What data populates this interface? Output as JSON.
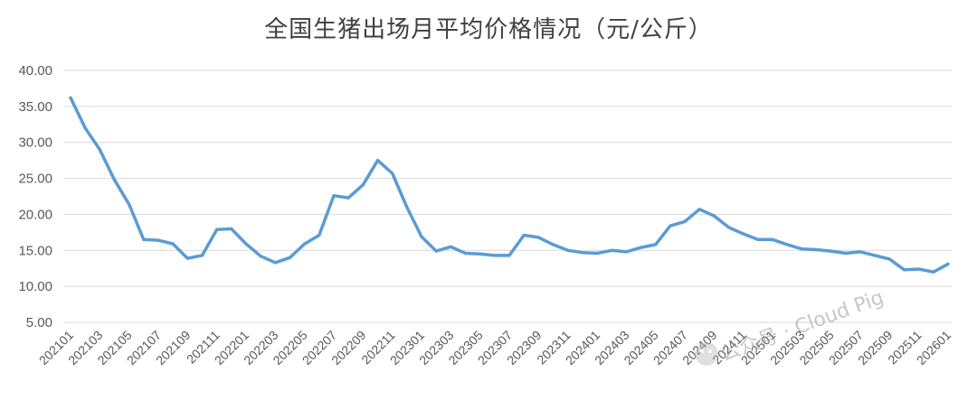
{
  "chart_data": {
    "type": "line",
    "title": "全国生猪出场月平均价格情况（元/公斤）",
    "xlabel": "",
    "ylabel": "",
    "ylim": [
      5,
      40
    ],
    "y_ticks": [
      "5.00",
      "10.00",
      "15.00",
      "20.00",
      "25.00",
      "30.00",
      "35.00",
      "40.00"
    ],
    "grid": true,
    "legend": "none",
    "line_color": "#5b9bd5",
    "x_tick_labels": [
      "202101",
      "202103",
      "202105",
      "202107",
      "202109",
      "202111",
      "202201",
      "202203",
      "202205",
      "202207",
      "202209",
      "202211",
      "202301",
      "202303",
      "202305",
      "202307",
      "202309",
      "202311",
      "202401",
      "202403",
      "202405",
      "202407",
      "202409",
      "202411",
      "202501",
      "202503",
      "202505",
      "202507",
      "202509",
      "202511",
      "202601"
    ],
    "x": [
      "202101",
      "202102",
      "202103",
      "202104",
      "202105",
      "202106",
      "202107",
      "202108",
      "202109",
      "202110",
      "202111",
      "202112",
      "202201",
      "202202",
      "202203",
      "202204",
      "202205",
      "202206",
      "202207",
      "202208",
      "202209",
      "202210",
      "202211",
      "202212",
      "202301",
      "202302",
      "202303",
      "202304",
      "202305",
      "202306",
      "202307",
      "202308",
      "202309",
      "202310",
      "202311",
      "202312",
      "202401",
      "202402",
      "202403",
      "202404",
      "202405",
      "202406",
      "202407",
      "202408",
      "202409",
      "202410",
      "202411",
      "202412",
      "202501",
      "202502",
      "202503",
      "202504",
      "202505",
      "202506",
      "202507",
      "202508",
      "202509",
      "202510",
      "202511",
      "202512",
      "202601"
    ],
    "series": [
      {
        "values": [
          36.2,
          32.0,
          29.0,
          24.8,
          21.4,
          16.5,
          16.4,
          15.9,
          13.9,
          14.3,
          17.9,
          18.0,
          15.9,
          14.2,
          13.3,
          14.0,
          15.9,
          17.1,
          22.6,
          22.3,
          24.1,
          27.5,
          25.7,
          21.0,
          16.9,
          14.9,
          15.5,
          14.6,
          14.5,
          14.3,
          14.3,
          17.1,
          16.8,
          15.8,
          15.0,
          14.7,
          14.6,
          15.0,
          14.8,
          15.4,
          15.8,
          18.4,
          19.0,
          20.7,
          19.8,
          18.2,
          17.3,
          16.5,
          16.5,
          15.8,
          15.2,
          15.1,
          14.9,
          14.6,
          14.8,
          14.3,
          13.8,
          12.3,
          12.4,
          12.0,
          13.1
        ]
      }
    ]
  },
  "watermark": "公众号 · Cloud Pig"
}
